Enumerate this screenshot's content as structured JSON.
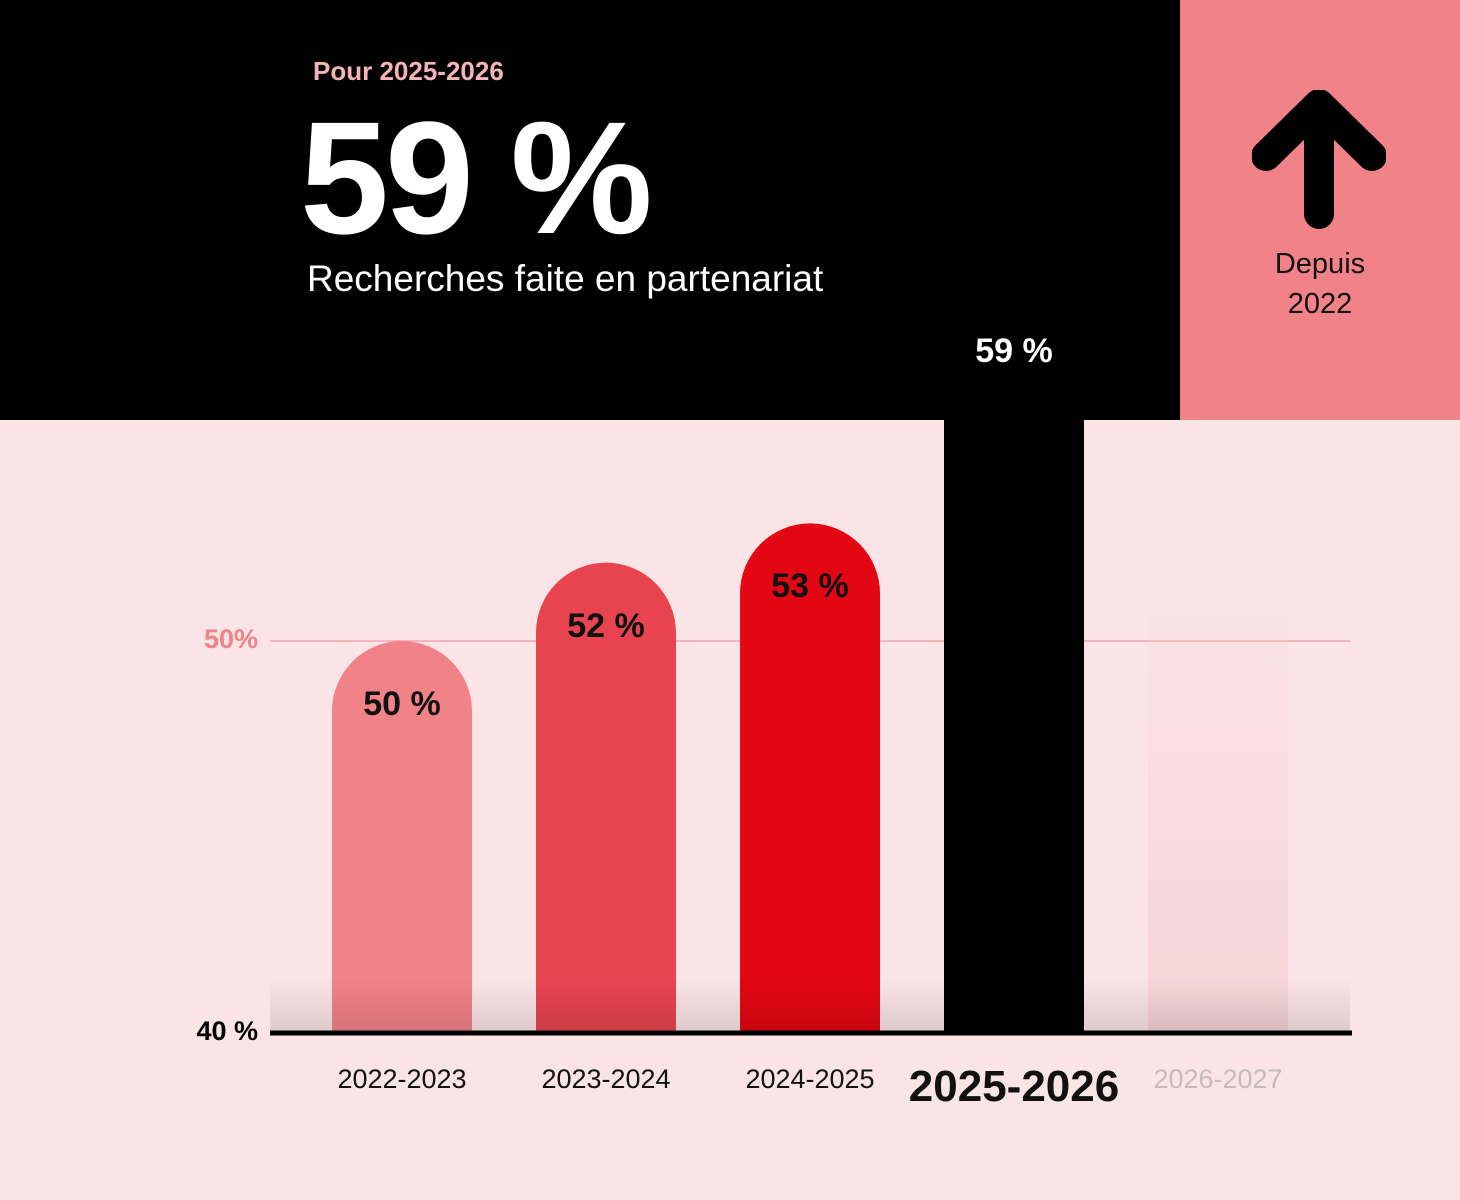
{
  "header": {
    "kicker": "Pour 2025-2026",
    "headline_value": "59 %",
    "subtitle": "Recherches faite en partenariat"
  },
  "side_panel": {
    "icon": "arrow-up-icon",
    "since_line1": "Depuis",
    "since_line2": "2022"
  },
  "colors": {
    "header_bg": "#000000",
    "side_bg": "#f18288",
    "page_bg": "#fbe4e6",
    "kicker": "#f6b3b8"
  },
  "chart_data": {
    "type": "bar",
    "categories": [
      "2022-2023",
      "2023-2024",
      "2024-2025",
      "2025-2026",
      "2026-2027"
    ],
    "values": [
      50,
      52,
      53,
      59,
      null
    ],
    "value_labels": [
      "50 %",
      "52 %",
      "53 %",
      "59 %",
      ""
    ],
    "bar_colors": [
      "#f18288",
      "#e84450",
      "#e30613",
      "#000000",
      "#f7d3d6"
    ],
    "value_label_colors": [
      "#111111",
      "#111111",
      "#111111",
      "#ffffff",
      "#111111"
    ],
    "highlight_category": "2025-2026",
    "future_category": "2026-2027",
    "yticks": [
      {
        "value": 40,
        "label": "40 %",
        "color": "#000000"
      },
      {
        "value": 50,
        "label": "50%",
        "color": "#f18288"
      }
    ],
    "ylim": [
      40,
      60
    ],
    "grid": false
  }
}
